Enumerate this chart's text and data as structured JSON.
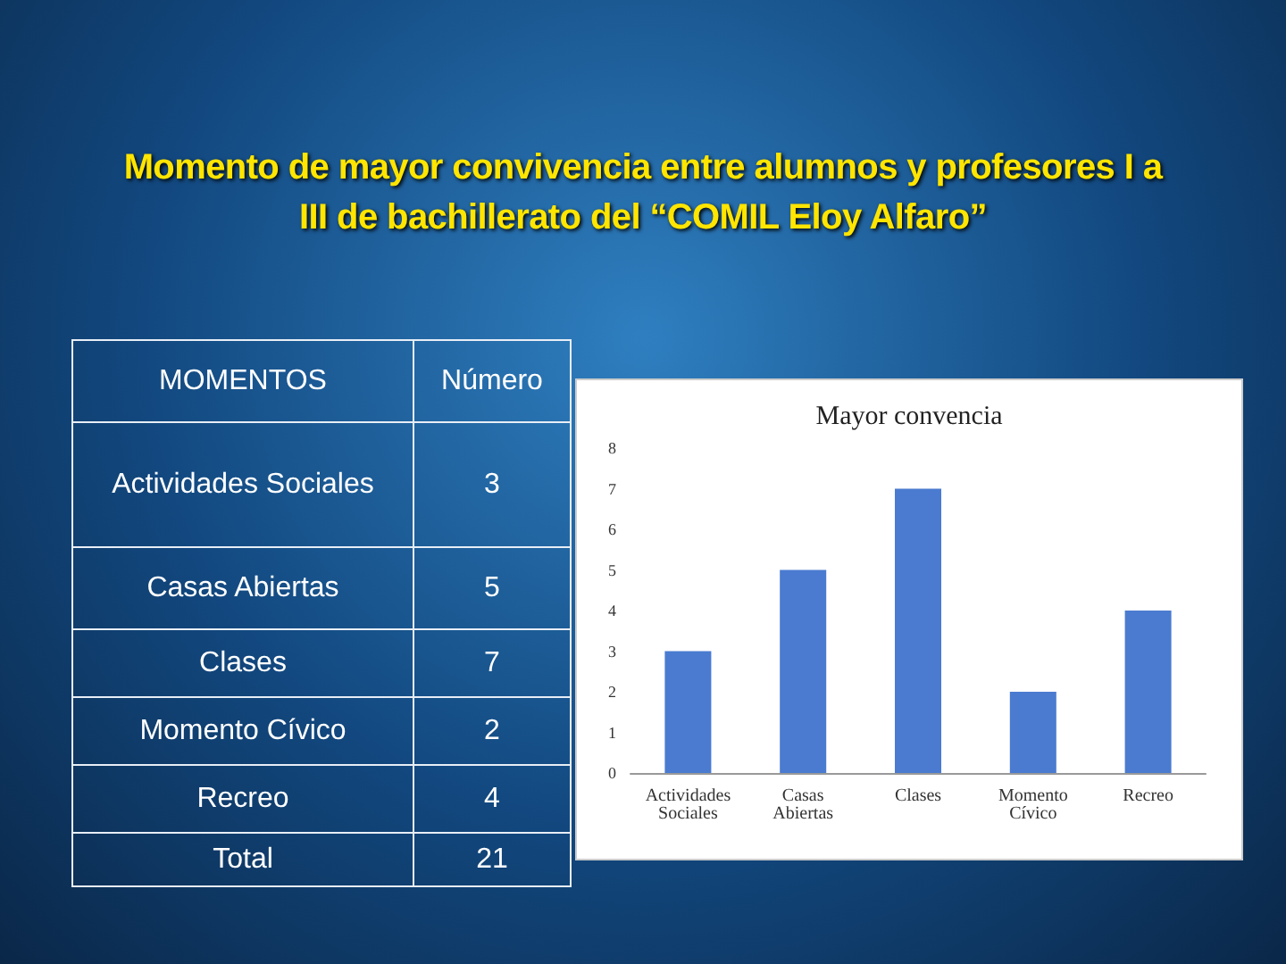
{
  "chart_data": {
    "type": "bar",
    "title": "Momento de  mayor convivencia entre alumnos y profesores I a III de bachillerato del “COMIL Eloy Alfaro”",
    "subtitle": "Mayor convencia",
    "categories": [
      "Actividades Sociales",
      "Casas Abiertas",
      "Clases",
      "Momento Cívico",
      "Recreo"
    ],
    "values": [
      3,
      5,
      7,
      2,
      4
    ],
    "color": "#4a7bd0",
    "ylim": [
      0,
      8
    ],
    "yticks": [
      0,
      1,
      2,
      3,
      4,
      5,
      6,
      7,
      8
    ],
    "grid": false,
    "annotations": [
      "MOMENTOS",
      "Número",
      "3",
      "5",
      "7",
      "2",
      "4",
      "Total",
      "21"
    ]
  }
}
